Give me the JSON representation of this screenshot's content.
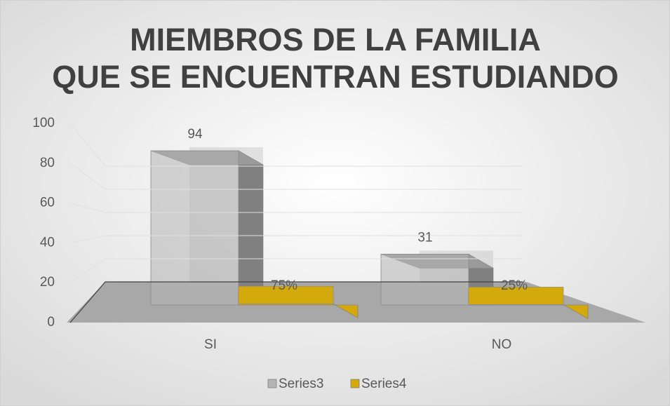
{
  "chart_data": {
    "type": "bar3d",
    "title": "MIEMBROS DE LA FAMILIA QUE SE ENCUENTRAN ESTUDIANDO",
    "categories": [
      "SI",
      "NO"
    ],
    "series": [
      {
        "name": "Series3",
        "color": "#b4b4b4",
        "values": [
          94,
          31
        ]
      },
      {
        "name": "Series4",
        "color": "#d4a90c",
        "values": [
          0.75,
          0.25
        ],
        "value_labels": [
          "75%",
          "25%"
        ]
      }
    ],
    "ylim": [
      0,
      100
    ],
    "yticks": [
      0,
      20,
      40,
      60,
      80,
      100
    ],
    "grid": true,
    "legend": "bottom"
  }
}
